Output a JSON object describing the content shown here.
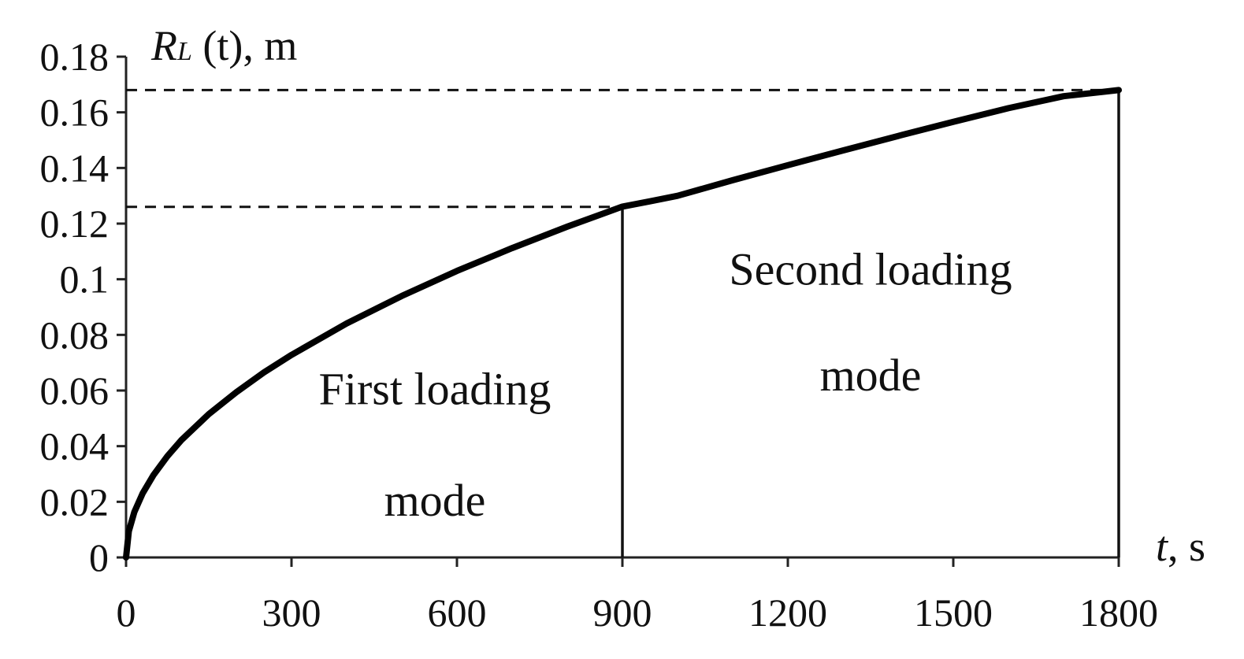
{
  "chart_data": {
    "type": "line",
    "xlabel": {
      "var": "t",
      "unit": ", s"
    },
    "ylabel": {
      "var": "R",
      "sub": "L",
      "arg": " (t), m"
    },
    "xlim": [
      0,
      1800
    ],
    "ylim": [
      0,
      0.18
    ],
    "xticks": [
      0,
      300,
      600,
      900,
      1200,
      1500,
      1800
    ],
    "xtick_labels": [
      "0",
      "300",
      "600",
      "900",
      "1200",
      "1500",
      "1800"
    ],
    "yticks": [
      0,
      0.02,
      0.04,
      0.06,
      0.08,
      0.1,
      0.12,
      0.14,
      0.16,
      0.18
    ],
    "ytick_labels": [
      "0",
      "0.02",
      "0.04",
      "0.06",
      "0.08",
      "0.1",
      "0.12",
      "0.14",
      "0.16",
      "0.18"
    ],
    "grid": false,
    "series": [
      {
        "x": [
          0,
          5,
          15,
          30,
          50,
          75,
          100,
          150,
          200,
          250,
          300,
          400,
          500,
          600,
          700,
          800,
          900,
          950,
          1000,
          1100,
          1200,
          1300,
          1400,
          1500,
          1600,
          1700,
          1800
        ],
        "y": [
          0,
          0.0094,
          0.0163,
          0.023,
          0.0297,
          0.0364,
          0.0421,
          0.0515,
          0.0594,
          0.0665,
          0.0728,
          0.0841,
          0.094,
          0.103,
          0.1112,
          0.1189,
          0.1261,
          0.128,
          0.13,
          0.1356,
          0.141,
          0.1463,
          0.1515,
          0.1566,
          0.1615,
          0.1658,
          0.168
        ],
        "color": "#000000"
      }
    ],
    "reference_lines": [
      {
        "type": "hline",
        "y": 0.126,
        "x_from": 0,
        "x_to": 900,
        "style": "dashed"
      },
      {
        "type": "hline",
        "y": 0.168,
        "x_from": 0,
        "x_to": 1800,
        "style": "dashed"
      },
      {
        "type": "vline",
        "x": 900,
        "y_from": 0,
        "y_to": 0.126,
        "style": "solid"
      },
      {
        "type": "vline",
        "x": 1800,
        "y_from": 0,
        "y_to": 0.168,
        "style": "solid"
      }
    ],
    "annotations": [
      {
        "lines": [
          "First loading",
          "mode"
        ],
        "x": 560,
        "y": [
          0.055,
          0.015
        ]
      },
      {
        "lines": [
          "Second loading",
          "mode"
        ],
        "x": 1350,
        "y": [
          0.098,
          0.06
        ]
      }
    ]
  }
}
